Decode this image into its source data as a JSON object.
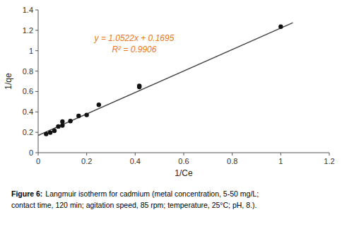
{
  "chart_data": {
    "type": "scatter",
    "xlabel": "1/Ce",
    "ylabel": "1/qe",
    "series": [
      {
        "type": "scatter",
        "color": "#111111",
        "marker": "circle",
        "x": [
          0.033,
          0.05,
          0.067,
          0.083,
          0.1,
          0.1,
          0.133,
          0.167,
          0.2,
          0.25,
          0.417,
          0.417,
          1.0
        ],
        "values": [
          0.183,
          0.197,
          0.215,
          0.257,
          0.267,
          0.305,
          0.31,
          0.36,
          0.37,
          0.47,
          0.645,
          0.655,
          1.235
        ]
      },
      {
        "type": "line",
        "color": "#444444",
        "line_style": "solid",
        "x": [
          0.0,
          1.05
        ],
        "values": [
          0.1695,
          1.27431
        ]
      }
    ],
    "xlim": [
      0,
      1.2
    ],
    "ylim": [
      0,
      1.4
    ],
    "xticks": [
      0,
      0.2,
      0.4,
      0.6,
      0.8,
      1,
      1.2
    ],
    "yticks": [
      0,
      0.2,
      0.4,
      0.6,
      0.8,
      1,
      1.2,
      1.4
    ],
    "grid": false,
    "annotations": [
      {
        "text": "y = 1.0522x + 0.1695",
        "color": "#E87820"
      },
      {
        "text": "R² = 0.9906",
        "color": "#E87820"
      }
    ],
    "caption": {
      "label": "Figure 6:",
      "lines": [
        "Langmuir isotherm for cadmium (metal concentration, 5-50 mg/L;",
        "contact time, 120 min; agitation speed, 85 rpm; temperature, 25°C; pH, 8.)."
      ]
    }
  }
}
